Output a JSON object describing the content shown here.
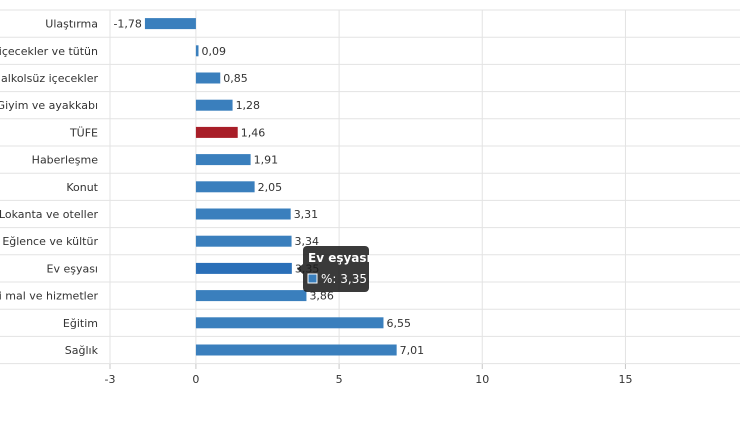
{
  "chart_data": {
    "type": "bar",
    "orientation": "horizontal",
    "categories": [
      "Ulaştırma",
      "Alkollü içecekler ve tütün",
      "Gıda ve alkolsüz içecekler",
      "Giyim ve ayakkabı",
      "TÜFE",
      "Haberleşme",
      "Konut",
      "Lokanta ve oteller",
      "Eğlence ve kültür",
      "Ev eşyası",
      "Çeşitli mal ve hizmetler",
      "Eğitim",
      "Sağlık"
    ],
    "display_labels": [
      "Ulaştırma",
      "ü içecekler ve tütün",
      "ve alkolsüz içecekler",
      "Giyim ve ayakkabı",
      "TÜFE",
      "Haberleşme",
      "Konut",
      "Lokanta ve oteller",
      "Eğlence ve kültür",
      "Ev eşyası",
      "itli mal ve hizmetler",
      "Eğitim",
      "Sağlık"
    ],
    "values": [
      -1.78,
      0.09,
      0.85,
      1.28,
      1.46,
      1.91,
      2.05,
      3.31,
      3.34,
      3.35,
      3.86,
      6.55,
      7.01
    ],
    "value_labels": [
      "-1,78",
      "0,09",
      "0,85",
      "1,28",
      "1,46",
      "1,91",
      "2,05",
      "3,31",
      "3,34",
      "3,35",
      "3,86",
      "6,55",
      "7,01"
    ],
    "xlim": [
      -3,
      19
    ],
    "xticks": [
      -3,
      0,
      5,
      10,
      15
    ],
    "grid": true,
    "colors": {
      "bar": "#3a7fbd",
      "highlight": "#a81e28",
      "hover": "#2a6fb8"
    },
    "highlight_index": 4,
    "hover_index": 9
  },
  "tooltip": {
    "title": "Ev eşyası",
    "series_label": "%: 3,35"
  }
}
